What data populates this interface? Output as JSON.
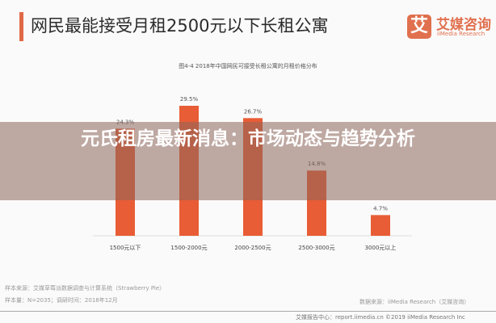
{
  "header": {
    "title": "网民最能接受月租2500元以下长租公寓",
    "logo_mark": "艾",
    "logo_cn": "艾媒咨询",
    "logo_en": "iiMedia Research"
  },
  "chart_data": {
    "type": "bar",
    "title": "图4-4 2018年中国网民可接受长租公寓的月租价格分布",
    "categories": [
      "1500元以下",
      "1500-2000元",
      "2000-2500元",
      "2500-3000元",
      "3000元以上"
    ],
    "values": [
      24.3,
      29.5,
      26.7,
      14.8,
      4.7
    ],
    "labels": [
      "24.3%",
      "29.5%",
      "26.7%",
      "14.8%",
      "4.7%"
    ],
    "unit": "%",
    "ylim": [
      0,
      30
    ],
    "grid": false,
    "bar_color": "#e85d35"
  },
  "footer": {
    "source1": "样本来源：艾媒草莓派数据调查与计算系统（Strawberry Pie）",
    "source2": "样本量：N=2035；调研时间：2018年12月",
    "data_source": "数据来源：iiMedia Research（艾媒咨询）",
    "copyright": "艾媒报告中心：report.iimedia.cn ©2019 iiMedia Research Inc"
  },
  "overlay": {
    "title": "元氏租房最新消息：市场动态与趋势分析"
  }
}
